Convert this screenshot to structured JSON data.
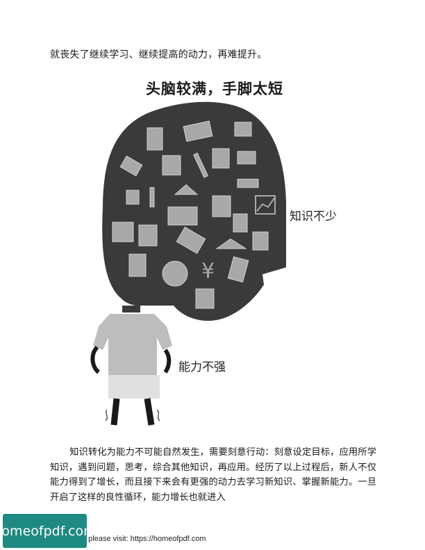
{
  "text_top": "就丧失了继续学习、继续提高的动力，再难提升。",
  "figure": {
    "title": "头脑较满，手脚太短",
    "label_knowledge": "知识不少",
    "label_ability": "能力不强"
  },
  "paragraph": "知识转化为能力不可能自然发生，需要刻意行动：刻意设定目标，应用所学知识，遇到问题，思考，综合其他知识，再应用。经历了以上过程后，新人不仅能力得到了增长，而且接下来会有更强的动力去学习新知识、掌握新能力。一旦开启了这样的良性循环，能力增长也就进入",
  "footer": {
    "logo_text": "homeofpdf.com",
    "visit_text": "e please visit: https://homeofpdf.com"
  },
  "colors": {
    "head": "#3a3a3a",
    "icon_gray": "#a8a8a8",
    "shirt": "#bdbdbd",
    "logo_bg": "#1e8a82"
  }
}
